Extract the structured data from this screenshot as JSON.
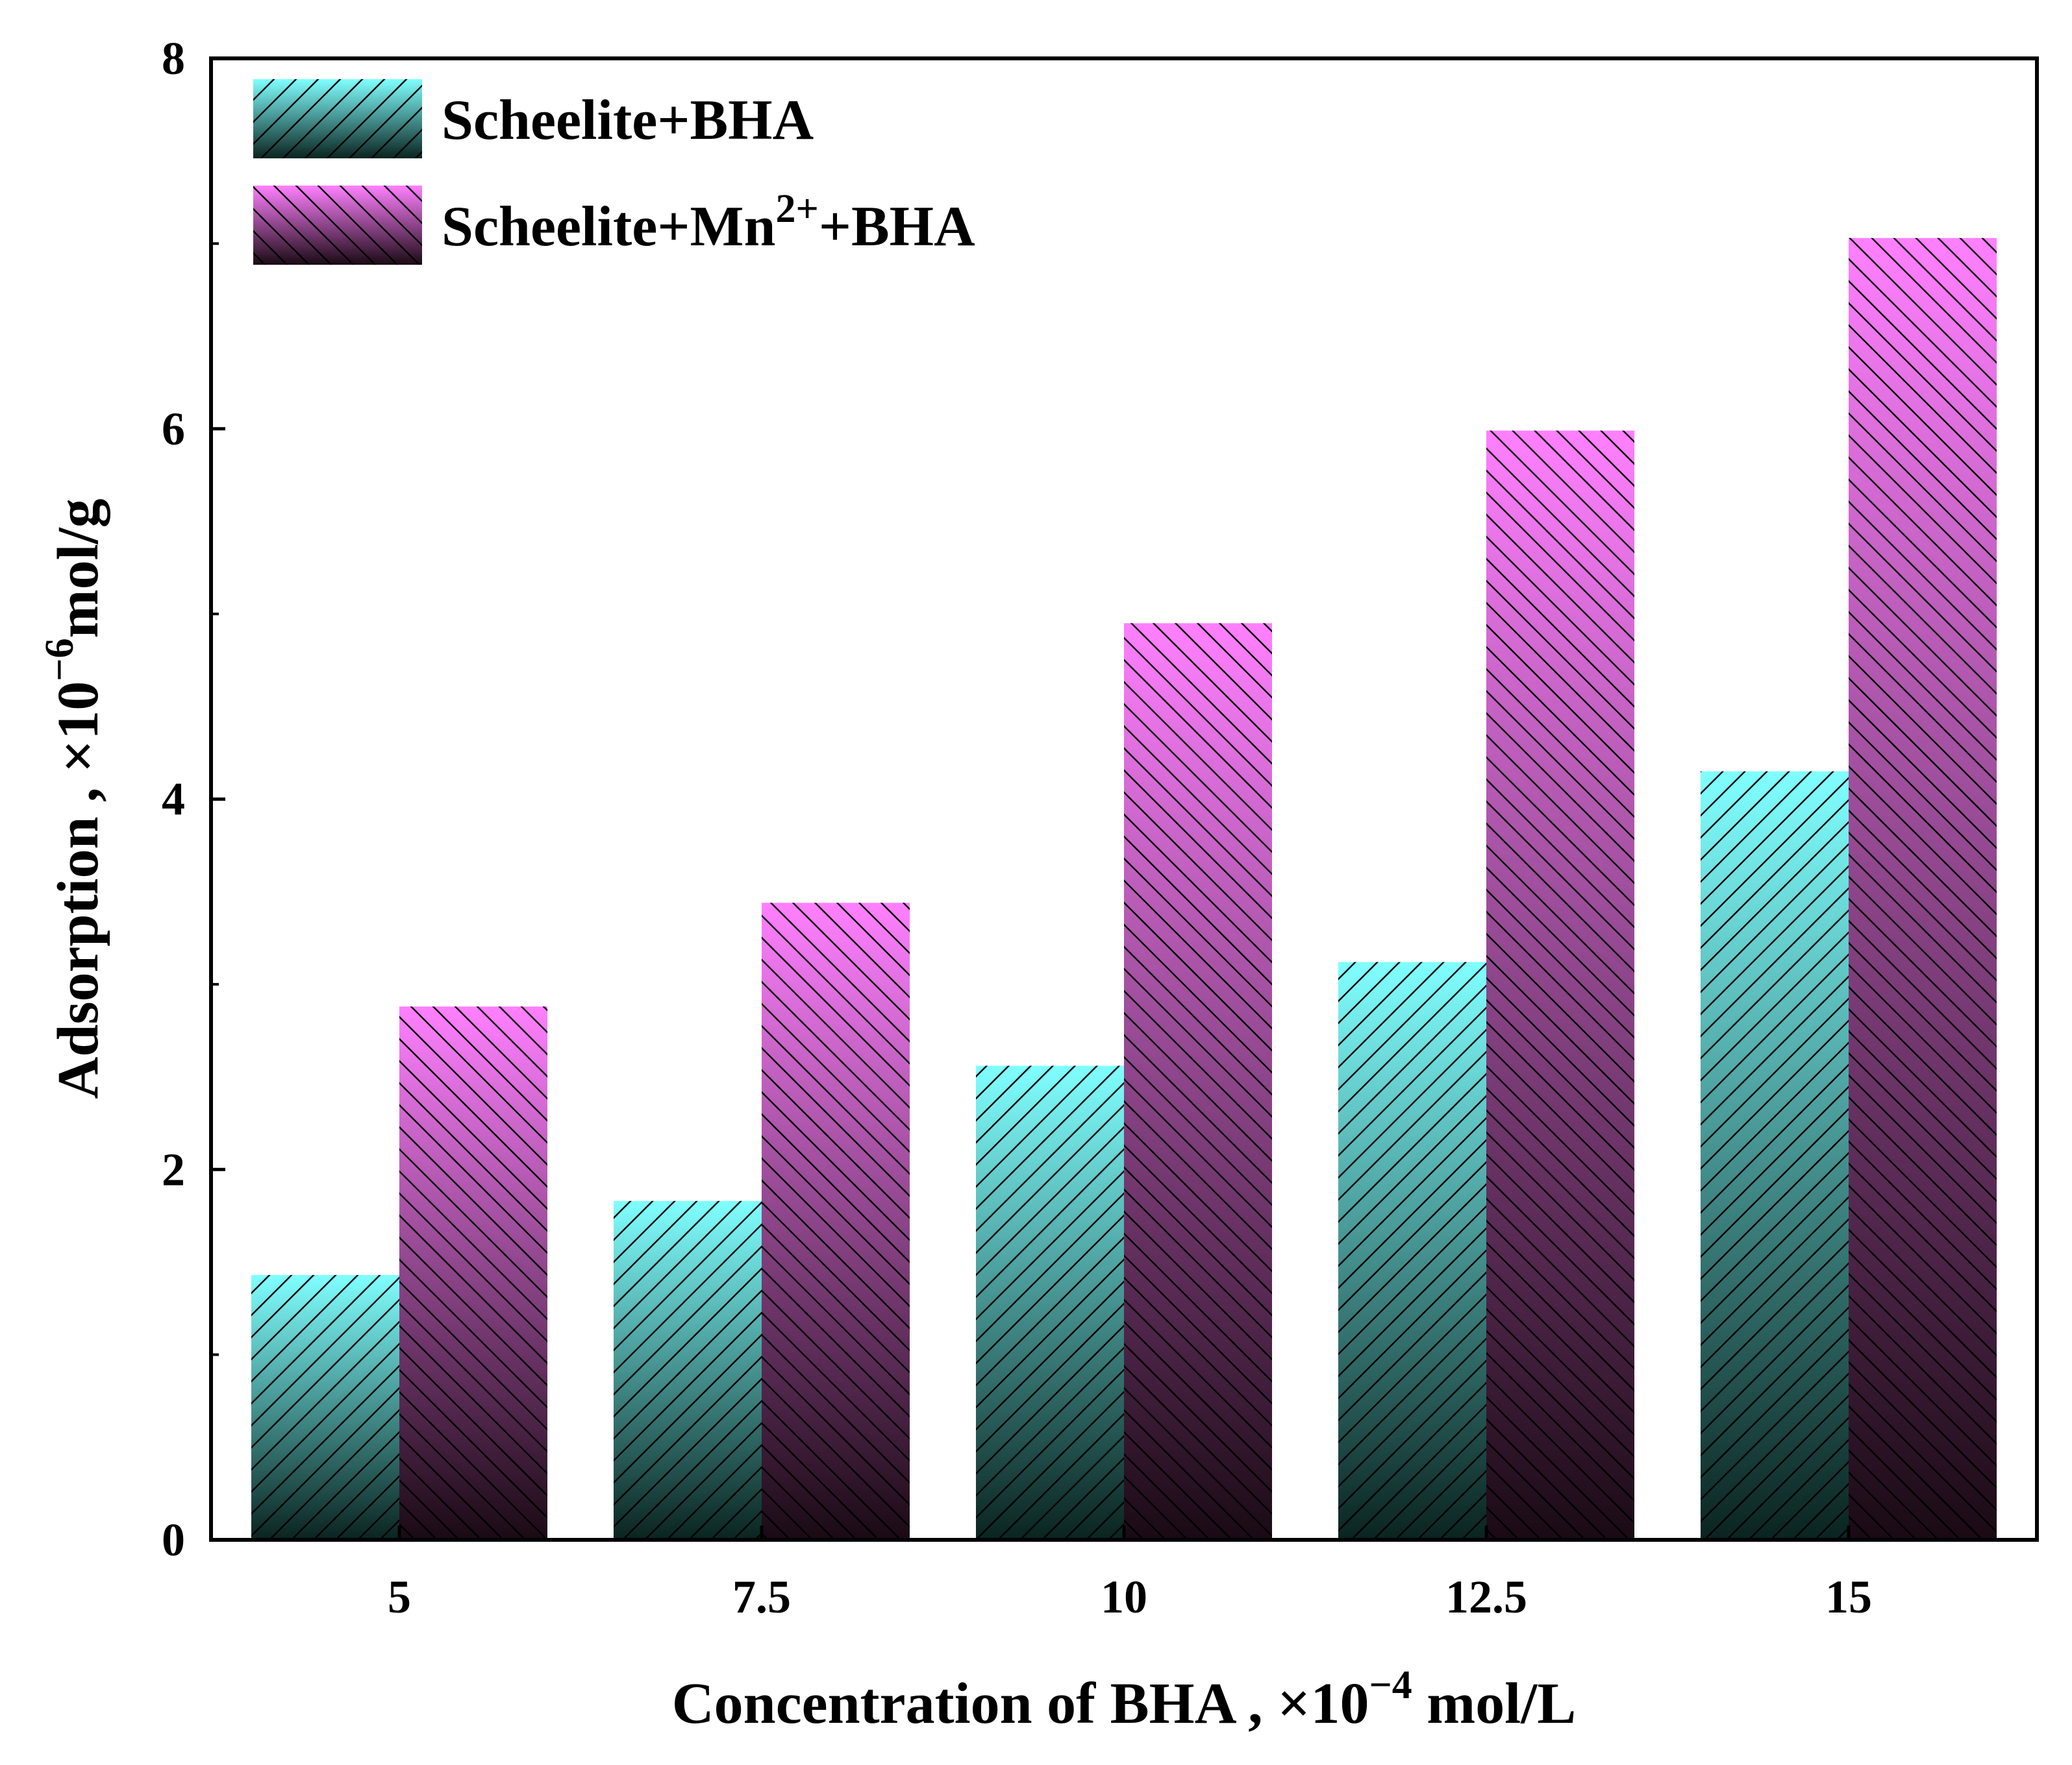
{
  "chart_data": {
    "type": "bar",
    "title": "",
    "xlabel_main": "Concentration of BHA , ×10",
    "xlabel_exp": "−4",
    "xlabel_unit": " mol/L",
    "ylabel_main": "Adsorption , ×10",
    "ylabel_exp": "−6",
    "ylabel_unit": "mol/g",
    "categories": [
      "5",
      "7.5",
      "10",
      "12.5",
      "15"
    ],
    "ylim": [
      0,
      8
    ],
    "yticks": [
      "0",
      "2",
      "4",
      "6",
      "8"
    ],
    "series": [
      {
        "name": "Scheelite+BHA",
        "legend_parts": [
          "Scheelite+BHA"
        ],
        "values": [
          1.43,
          1.83,
          2.56,
          3.12,
          4.15
        ],
        "color_top": "#80ffff",
        "color_bottom": "#0a2420",
        "hatch": "forward"
      },
      {
        "name": "Scheelite+Mn2++BHA",
        "legend_parts": [
          "Scheelite+Mn",
          "2+",
          "+BHA"
        ],
        "values": [
          2.88,
          3.44,
          4.95,
          5.99,
          7.03
        ],
        "color_top": "#ff80ff",
        "color_bottom": "#1a0a14",
        "hatch": "backward"
      }
    ],
    "grid": false,
    "legend_position": "top-left"
  }
}
